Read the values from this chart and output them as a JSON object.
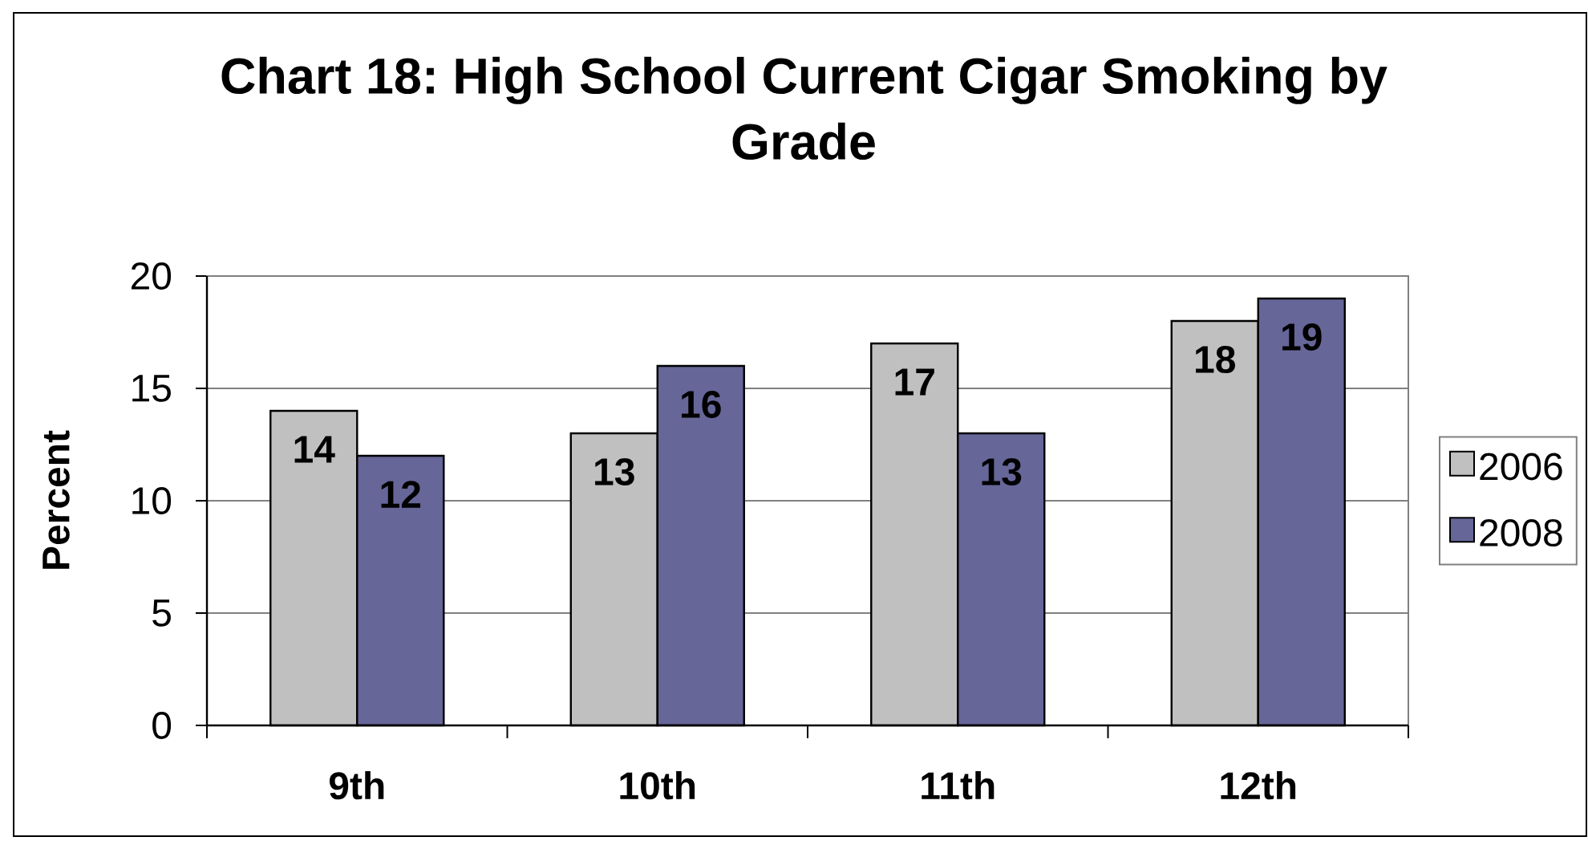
{
  "chart_data": {
    "type": "bar",
    "title": "Chart 18: High School Current Cigar Smoking by Grade",
    "ylabel": "Percent",
    "categories": [
      "9th",
      "10th",
      "11th",
      "12th"
    ],
    "series": [
      {
        "name": "2006",
        "color": "#c0c0c0",
        "values": [
          14,
          13,
          17,
          18
        ]
      },
      {
        "name": "2008",
        "color": "#666699",
        "values": [
          12,
          16,
          13,
          19
        ]
      }
    ],
    "ylim": [
      0,
      20
    ],
    "yticks": [
      0,
      5,
      10,
      15,
      20
    ],
    "grid": "y",
    "legend": "right",
    "data_labels": true
  }
}
